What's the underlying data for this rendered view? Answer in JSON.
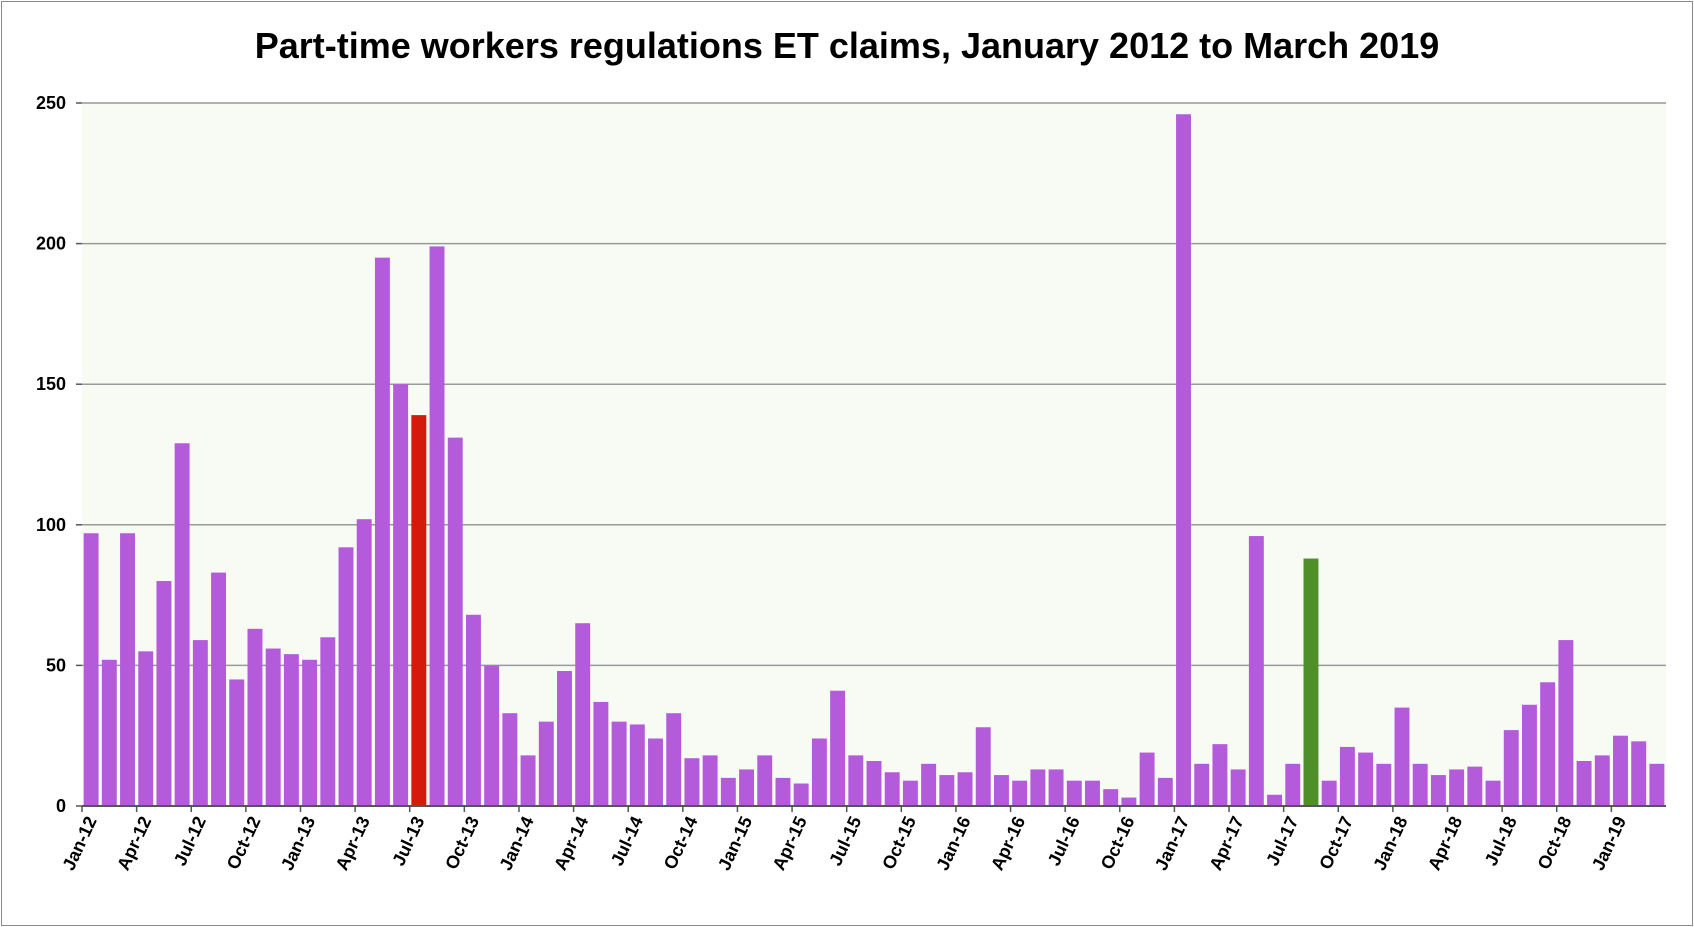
{
  "chart_data": {
    "type": "bar",
    "title": "Part-time workers regulations ET claims, January 2012 to March 2019",
    "xlabel": "",
    "ylabel": "",
    "ylim": [
      0,
      250
    ],
    "yticks": [
      0,
      50,
      100,
      150,
      200,
      250
    ],
    "grid": true,
    "legend": "none",
    "colors": {
      "default": "#b45bdc",
      "highlight_red": "#d41a0a",
      "highlight_green": "#4f8f2a",
      "plot_background": "#f7fbf3",
      "gridline": "#9a9a9a"
    },
    "categories": [
      "Jan-12",
      "Feb-12",
      "Mar-12",
      "Apr-12",
      "May-12",
      "Jun-12",
      "Jul-12",
      "Aug-12",
      "Sep-12",
      "Oct-12",
      "Nov-12",
      "Dec-12",
      "Jan-13",
      "Feb-13",
      "Mar-13",
      "Apr-13",
      "May-13",
      "Jun-13",
      "Jul-13",
      "Aug-13",
      "Sep-13",
      "Oct-13",
      "Nov-13",
      "Dec-13",
      "Jan-14",
      "Feb-14",
      "Mar-14",
      "Apr-14",
      "May-14",
      "Jun-14",
      "Jul-14",
      "Aug-14",
      "Sep-14",
      "Oct-14",
      "Nov-14",
      "Dec-14",
      "Jan-15",
      "Feb-15",
      "Mar-15",
      "Apr-15",
      "May-15",
      "Jun-15",
      "Jul-15",
      "Aug-15",
      "Sep-15",
      "Oct-15",
      "Nov-15",
      "Dec-15",
      "Jan-16",
      "Feb-16",
      "Mar-16",
      "Apr-16",
      "May-16",
      "Jun-16",
      "Jul-16",
      "Aug-16",
      "Sep-16",
      "Oct-16",
      "Nov-16",
      "Dec-16",
      "Jan-17",
      "Feb-17",
      "Mar-17",
      "Apr-17",
      "May-17",
      "Jun-17",
      "Jul-17",
      "Aug-17",
      "Sep-17",
      "Oct-17",
      "Nov-17",
      "Dec-17",
      "Jan-18",
      "Feb-18",
      "Mar-18",
      "Apr-18",
      "May-18",
      "Jun-18",
      "Jul-18",
      "Aug-18",
      "Sep-18",
      "Oct-18",
      "Nov-18",
      "Dec-18",
      "Jan-19",
      "Feb-19",
      "Mar-19"
    ],
    "values": [
      97,
      52,
      97,
      55,
      80,
      129,
      59,
      83,
      45,
      63,
      56,
      54,
      52,
      60,
      92,
      102,
      195,
      150,
      139,
      199,
      131,
      68,
      50,
      33,
      18,
      30,
      48,
      65,
      37,
      30,
      29,
      24,
      33,
      17,
      18,
      10,
      13,
      18,
      10,
      8,
      24,
      41,
      18,
      16,
      12,
      9,
      15,
      11,
      12,
      28,
      11,
      9,
      13,
      13,
      9,
      9,
      6,
      3,
      19,
      10,
      246,
      15,
      22,
      13,
      96,
      4,
      15,
      88,
      9,
      21,
      19,
      15,
      35,
      15,
      11,
      13,
      14,
      9,
      27,
      36,
      44,
      59,
      16,
      18,
      25,
      23,
      15
    ],
    "highlights": [
      {
        "category": "Jul-13",
        "color": "#d41a0a"
      },
      {
        "category": "Aug-17",
        "color": "#4f8f2a"
      }
    ],
    "tick_labels": [
      "Jan-12",
      "Apr-12",
      "Jul-12",
      "Oct-12",
      "Jan-13",
      "Apr-13",
      "Jul-13",
      "Oct-13",
      "Jan-14",
      "Apr-14",
      "Jul-14",
      "Oct-14",
      "Jan-15",
      "Apr-15",
      "Jul-15",
      "Oct-15",
      "Jan-16",
      "Apr-16",
      "Jul-16",
      "Oct-16",
      "Jan-17",
      "Apr-17",
      "Jul-17",
      "Oct-17",
      "Jan-18",
      "Apr-18",
      "Jul-18",
      "Oct-18",
      "Jan-19"
    ]
  }
}
